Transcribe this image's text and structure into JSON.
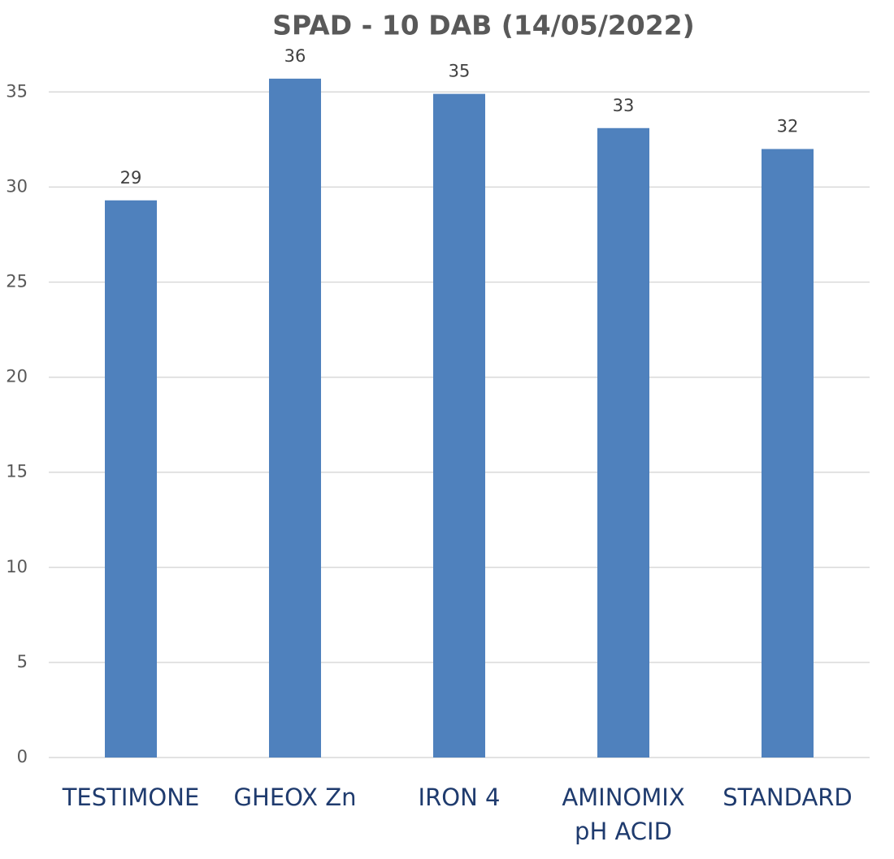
{
  "chart_data": {
    "type": "bar",
    "title": "SPAD -  10 DAB (14/05/2022)",
    "categories": [
      "TESTIMONE",
      "GHEOX Zn",
      "IRON 4",
      "AMINOMIX\npH ACID",
      "STANDARD"
    ],
    "values": [
      29.3,
      35.7,
      34.9,
      33.1,
      32.0
    ],
    "value_labels": [
      "29",
      "36",
      "35",
      "33",
      "32"
    ],
    "color": "#4f81bd",
    "ylim": [
      0,
      38
    ],
    "yticks": [
      0,
      5,
      10,
      15,
      20,
      25,
      30,
      35
    ],
    "grid": true
  }
}
